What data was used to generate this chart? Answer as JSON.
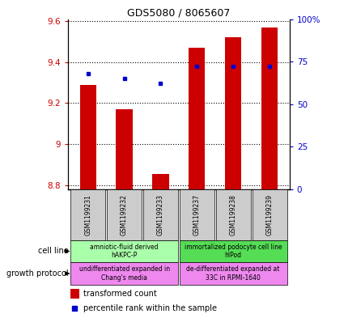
{
  "title": "GDS5080 / 8065607",
  "samples": [
    "GSM1199231",
    "GSM1199232",
    "GSM1199233",
    "GSM1199237",
    "GSM1199238",
    "GSM1199239"
  ],
  "transformed_count": [
    9.29,
    9.17,
    8.855,
    9.47,
    9.52,
    9.57
  ],
  "percentile_rank": [
    68,
    65,
    62,
    72,
    72,
    72
  ],
  "ymin": 8.78,
  "ymax": 9.61,
  "y_ticks": [
    8.8,
    9.0,
    9.2,
    9.4,
    9.6
  ],
  "y_tick_labels": [
    "8.8",
    "9",
    "9.2",
    "9.4",
    "9.6"
  ],
  "right_y_ticks": [
    0,
    25,
    50,
    75,
    100
  ],
  "right_y_labels": [
    "0",
    "25",
    "50",
    "75",
    "100%"
  ],
  "bar_bottom": 8.78,
  "bar_color": "#cc0000",
  "dot_color": "#0000cc",
  "cell_line_groups": [
    {
      "label": "amniotic-fluid derived\nhAKPC-P",
      "samples": [
        0,
        1,
        2
      ],
      "color": "#aaffaa"
    },
    {
      "label": "immortalized podocyte cell line\nhIPod",
      "samples": [
        3,
        4,
        5
      ],
      "color": "#55dd55"
    }
  ],
  "growth_protocol_groups": [
    {
      "label": "undifferentiated expanded in\nChang's media",
      "samples": [
        0,
        1,
        2
      ],
      "color": "#ee88ee"
    },
    {
      "label": "de-differentiated expanded at\n33C in RPMI-1640",
      "samples": [
        3,
        4,
        5
      ],
      "color": "#ee88ee"
    }
  ],
  "cell_line_label": "cell line",
  "growth_protocol_label": "growth protocol",
  "legend_bar_label": "transformed count",
  "legend_dot_label": "percentile rank within the sample",
  "background_color": "#ffffff",
  "tick_color_left": "#cc0000",
  "tick_color_right": "#0000cc"
}
